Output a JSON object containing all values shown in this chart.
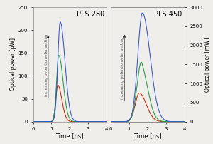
{
  "panel1_title": "PLS 280",
  "panel2_title": "PLS 450",
  "xlabel": "Time [ns]",
  "ylabel_left": "Optical power [μW]",
  "ylabel_right": "Optical power [mW]",
  "xlim": [
    0,
    4
  ],
  "panel1_ylim": [
    0,
    250
  ],
  "panel2_ylim": [
    0,
    3000
  ],
  "panel1_yticks": [
    0,
    50,
    100,
    150,
    200,
    250
  ],
  "panel2_yticks": [
    0,
    500,
    1000,
    1500,
    2000,
    2500,
    3000
  ],
  "xticks": [
    0,
    1,
    2,
    3,
    4
  ],
  "colors": [
    "#cc2200",
    "#229944",
    "#3355cc"
  ],
  "bg_color": "#f0eeea",
  "annotation_text": "increasing potentiometer setting"
}
